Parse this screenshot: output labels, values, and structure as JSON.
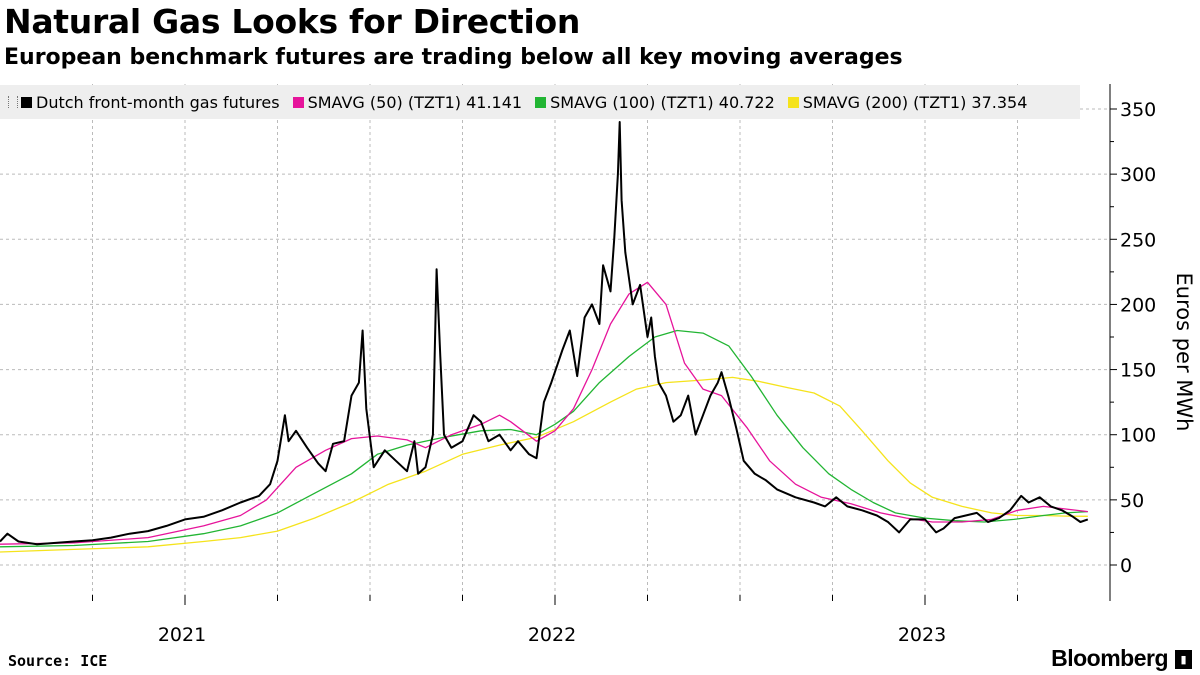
{
  "header": {
    "title": "Natural Gas Looks for Direction",
    "subtitle": "European benchmark futures are trading below all key moving averages"
  },
  "footer": {
    "source": "Source: ICE",
    "brand": "Bloomberg",
    "brand_icon": "bloomberg-terminal-icon"
  },
  "colors": {
    "price": "#000000",
    "sma50": "#e6149b",
    "sma100": "#22b533",
    "sma200": "#f5e31c",
    "grid": "#bbbbbb"
  },
  "chart_data": {
    "type": "line",
    "title": "Natural Gas Looks for Direction",
    "subtitle": "European benchmark futures are trading below all key moving averages",
    "ylabel": "Euros per MWh",
    "xlabel": "",
    "ylim": [
      -22,
      370
    ],
    "yticks": [
      0,
      50,
      100,
      150,
      200,
      250,
      300,
      350
    ],
    "xlim": [
      2020.5,
      2023.5
    ],
    "year_labels": [
      {
        "x": 2021.0,
        "label": "2021"
      },
      {
        "x": 2022.0,
        "label": "2022"
      },
      {
        "x": 2023.0,
        "label": "2023"
      }
    ],
    "grid": true,
    "legend_position": "top",
    "series": [
      {
        "name": "Dutch front-month gas futures",
        "legend": "Dutch front-month gas futures",
        "color_key": "price",
        "points": [
          [
            2020.5,
            18
          ],
          [
            2020.52,
            24
          ],
          [
            2020.55,
            18
          ],
          [
            2020.6,
            16
          ],
          [
            2020.65,
            17
          ],
          [
            2020.7,
            18
          ],
          [
            2020.75,
            19
          ],
          [
            2020.8,
            21
          ],
          [
            2020.85,
            24
          ],
          [
            2020.9,
            26
          ],
          [
            2020.95,
            30
          ],
          [
            2021.0,
            35
          ],
          [
            2021.05,
            37
          ],
          [
            2021.1,
            42
          ],
          [
            2021.15,
            48
          ],
          [
            2021.2,
            53
          ],
          [
            2021.23,
            62
          ],
          [
            2021.25,
            80
          ],
          [
            2021.27,
            115
          ],
          [
            2021.28,
            95
          ],
          [
            2021.3,
            103
          ],
          [
            2021.33,
            90
          ],
          [
            2021.36,
            78
          ],
          [
            2021.38,
            72
          ],
          [
            2021.4,
            93
          ],
          [
            2021.43,
            95
          ],
          [
            2021.45,
            130
          ],
          [
            2021.47,
            140
          ],
          [
            2021.48,
            180
          ],
          [
            2021.49,
            120
          ],
          [
            2021.51,
            75
          ],
          [
            2021.54,
            88
          ],
          [
            2021.57,
            80
          ],
          [
            2021.6,
            72
          ],
          [
            2021.62,
            95
          ],
          [
            2021.63,
            70
          ],
          [
            2021.65,
            75
          ],
          [
            2021.67,
            100
          ],
          [
            2021.68,
            227
          ],
          [
            2021.69,
            160
          ],
          [
            2021.7,
            100
          ],
          [
            2021.72,
            90
          ],
          [
            2021.75,
            95
          ],
          [
            2021.78,
            115
          ],
          [
            2021.8,
            110
          ],
          [
            2021.82,
            95
          ],
          [
            2021.85,
            100
          ],
          [
            2021.88,
            88
          ],
          [
            2021.9,
            95
          ],
          [
            2021.93,
            85
          ],
          [
            2021.95,
            82
          ],
          [
            2021.97,
            125
          ],
          [
            2021.99,
            140
          ],
          [
            2022.02,
            165
          ],
          [
            2022.04,
            180
          ],
          [
            2022.06,
            145
          ],
          [
            2022.08,
            190
          ],
          [
            2022.1,
            200
          ],
          [
            2022.12,
            185
          ],
          [
            2022.13,
            230
          ],
          [
            2022.15,
            210
          ],
          [
            2022.16,
            250
          ],
          [
            2022.17,
            300
          ],
          [
            2022.175,
            340
          ],
          [
            2022.18,
            280
          ],
          [
            2022.19,
            240
          ],
          [
            2022.21,
            200
          ],
          [
            2022.23,
            215
          ],
          [
            2022.25,
            175
          ],
          [
            2022.26,
            190
          ],
          [
            2022.27,
            160
          ],
          [
            2022.28,
            140
          ],
          [
            2022.3,
            130
          ],
          [
            2022.32,
            110
          ],
          [
            2022.34,
            115
          ],
          [
            2022.36,
            130
          ],
          [
            2022.38,
            100
          ],
          [
            2022.4,
            115
          ],
          [
            2022.42,
            130
          ],
          [
            2022.44,
            140
          ],
          [
            2022.45,
            148
          ],
          [
            2022.47,
            128
          ],
          [
            2022.49,
            105
          ],
          [
            2022.51,
            80
          ],
          [
            2022.54,
            70
          ],
          [
            2022.57,
            65
          ],
          [
            2022.6,
            58
          ],
          [
            2022.65,
            52
          ],
          [
            2022.7,
            48
          ],
          [
            2022.73,
            45
          ],
          [
            2022.76,
            52
          ],
          [
            2022.79,
            45
          ],
          [
            2022.83,
            42
          ],
          [
            2022.87,
            38
          ],
          [
            2022.9,
            33
          ],
          [
            2022.93,
            25
          ],
          [
            2022.96,
            35
          ],
          [
            2023.0,
            35
          ],
          [
            2023.03,
            25
          ],
          [
            2023.05,
            28
          ],
          [
            2023.08,
            36
          ],
          [
            2023.11,
            38
          ],
          [
            2023.14,
            40
          ],
          [
            2023.17,
            33
          ],
          [
            2023.2,
            36
          ],
          [
            2023.23,
            42
          ],
          [
            2023.26,
            53
          ],
          [
            2023.28,
            48
          ],
          [
            2023.31,
            52
          ],
          [
            2023.34,
            45
          ],
          [
            2023.37,
            42
          ],
          [
            2023.4,
            37
          ],
          [
            2023.42,
            33
          ],
          [
            2023.44,
            35
          ]
        ]
      },
      {
        "name": "SMAVG (50) (TZT1) 41.141",
        "legend": "SMAVG (50) (TZT1) 41.141",
        "color_key": "sma50",
        "points": [
          [
            2020.5,
            16
          ],
          [
            2020.7,
            17
          ],
          [
            2020.9,
            21
          ],
          [
            2021.05,
            30
          ],
          [
            2021.15,
            38
          ],
          [
            2021.22,
            50
          ],
          [
            2021.3,
            75
          ],
          [
            2021.38,
            88
          ],
          [
            2021.45,
            97
          ],
          [
            2021.52,
            99
          ],
          [
            2021.6,
            96
          ],
          [
            2021.65,
            90
          ],
          [
            2021.72,
            100
          ],
          [
            2021.8,
            108
          ],
          [
            2021.85,
            115
          ],
          [
            2021.88,
            110
          ],
          [
            2021.95,
            95
          ],
          [
            2022.0,
            103
          ],
          [
            2022.05,
            120
          ],
          [
            2022.1,
            150
          ],
          [
            2022.15,
            185
          ],
          [
            2022.2,
            208
          ],
          [
            2022.25,
            217
          ],
          [
            2022.3,
            200
          ],
          [
            2022.35,
            155
          ],
          [
            2022.4,
            135
          ],
          [
            2022.45,
            130
          ],
          [
            2022.52,
            105
          ],
          [
            2022.58,
            80
          ],
          [
            2022.65,
            62
          ],
          [
            2022.72,
            52
          ],
          [
            2022.8,
            47
          ],
          [
            2022.88,
            40
          ],
          [
            2022.95,
            36
          ],
          [
            2023.02,
            33
          ],
          [
            2023.1,
            33
          ],
          [
            2023.18,
            35
          ],
          [
            2023.25,
            42
          ],
          [
            2023.32,
            45
          ],
          [
            2023.38,
            43
          ],
          [
            2023.44,
            41
          ]
        ]
      },
      {
        "name": "SMAVG (100) (TZT1) 40.722",
        "legend": "SMAVG (100) (TZT1) 40.722",
        "color_key": "sma100",
        "points": [
          [
            2020.5,
            14
          ],
          [
            2020.7,
            15
          ],
          [
            2020.9,
            18
          ],
          [
            2021.05,
            24
          ],
          [
            2021.15,
            30
          ],
          [
            2021.25,
            40
          ],
          [
            2021.35,
            55
          ],
          [
            2021.45,
            70
          ],
          [
            2021.52,
            85
          ],
          [
            2021.6,
            92
          ],
          [
            2021.7,
            98
          ],
          [
            2021.8,
            103
          ],
          [
            2021.88,
            104
          ],
          [
            2021.95,
            100
          ],
          [
            2022.0,
            108
          ],
          [
            2022.05,
            118
          ],
          [
            2022.12,
            140
          ],
          [
            2022.2,
            160
          ],
          [
            2022.27,
            175
          ],
          [
            2022.33,
            180
          ],
          [
            2022.4,
            178
          ],
          [
            2022.47,
            168
          ],
          [
            2022.53,
            145
          ],
          [
            2022.6,
            115
          ],
          [
            2022.67,
            90
          ],
          [
            2022.74,
            70
          ],
          [
            2022.8,
            58
          ],
          [
            2022.86,
            48
          ],
          [
            2022.92,
            40
          ],
          [
            2023.0,
            36
          ],
          [
            2023.08,
            34
          ],
          [
            2023.16,
            33
          ],
          [
            2023.24,
            35
          ],
          [
            2023.32,
            38
          ],
          [
            2023.38,
            40
          ],
          [
            2023.44,
            41
          ]
        ]
      },
      {
        "name": "SMAVG (200) (TZT1) 37.354",
        "legend": "SMAVG (200) (TZT1) 37.354",
        "color_key": "sma200",
        "points": [
          [
            2020.5,
            10
          ],
          [
            2020.7,
            12
          ],
          [
            2020.9,
            14
          ],
          [
            2021.05,
            18
          ],
          [
            2021.15,
            21
          ],
          [
            2021.25,
            26
          ],
          [
            2021.35,
            36
          ],
          [
            2021.45,
            48
          ],
          [
            2021.55,
            62
          ],
          [
            2021.65,
            72
          ],
          [
            2021.75,
            85
          ],
          [
            2021.85,
            92
          ],
          [
            2021.95,
            98
          ],
          [
            2022.05,
            110
          ],
          [
            2022.15,
            125
          ],
          [
            2022.22,
            135
          ],
          [
            2022.3,
            140
          ],
          [
            2022.4,
            142
          ],
          [
            2022.48,
            144
          ],
          [
            2022.55,
            141
          ],
          [
            2022.63,
            136
          ],
          [
            2022.7,
            132
          ],
          [
            2022.77,
            122
          ],
          [
            2022.83,
            103
          ],
          [
            2022.9,
            80
          ],
          [
            2022.96,
            63
          ],
          [
            2023.02,
            52
          ],
          [
            2023.1,
            45
          ],
          [
            2023.18,
            40
          ],
          [
            2023.25,
            38
          ],
          [
            2023.32,
            38
          ],
          [
            2023.38,
            37.5
          ],
          [
            2023.44,
            37.354
          ]
        ]
      }
    ]
  }
}
